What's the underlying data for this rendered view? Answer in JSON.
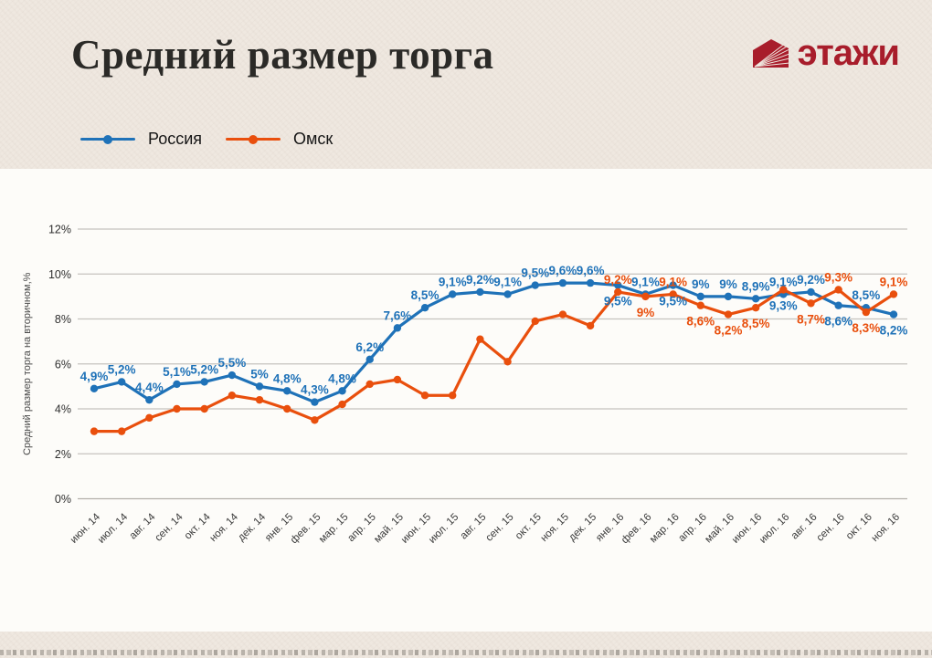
{
  "header": {
    "title": "Средний размер торга",
    "logo_text": "этажи",
    "logo_color": "#a81d2b"
  },
  "legend": [
    {
      "label": "Россия",
      "color": "#1f72b8"
    },
    {
      "label": "Омск",
      "color": "#e94f0d"
    }
  ],
  "chart_data": {
    "type": "line",
    "title": "Средний размер торга",
    "xlabel": "",
    "ylabel": "Средний размер торга на вторичном,%",
    "ylim": [
      0,
      12
    ],
    "yticks": [
      0,
      2,
      4,
      6,
      8,
      10,
      12
    ],
    "ytick_labels": [
      "0%",
      "2%",
      "4%",
      "6%",
      "8%",
      "10%",
      "12%"
    ],
    "grid": true,
    "legend_position": "top-left",
    "categories": [
      "июн. 14",
      "июл. 14",
      "авг. 14",
      "сен. 14",
      "окт. 14",
      "ноя. 14",
      "дек. 14",
      "янв. 15",
      "фев. 15",
      "мар. 15",
      "апр. 15",
      "май. 15",
      "июн. 15",
      "июл. 15",
      "авг. 15",
      "сен. 15",
      "окт. 15",
      "ноя. 15",
      "дек. 15",
      "янв. 16",
      "фев. 16",
      "мар. 16",
      "апр. 16",
      "май. 16",
      "июн. 16",
      "июл. 16",
      "авг. 16",
      "сен. 16",
      "окт. 16",
      "ноя. 16"
    ],
    "series": [
      {
        "name": "Россия",
        "color": "#1f72b8",
        "values": [
          4.9,
          5.2,
          4.4,
          5.1,
          5.2,
          5.5,
          5,
          4.8,
          4.3,
          4.8,
          6.2,
          7.6,
          8.5,
          9.1,
          9.2,
          9.1,
          9.5,
          9.6,
          9.6,
          9.5,
          9.1,
          9.5,
          9,
          9,
          8.9,
          9.1,
          9.2,
          8.6,
          8.5,
          8.2
        ],
        "labels": [
          "4,9%",
          "5,2%",
          "4,4%",
          "5,1%",
          "5,2%",
          "5,5%",
          "5%",
          "4,8%",
          "4,3%",
          "4,8%",
          "6,2%",
          "7,6%",
          "8,5%",
          "9,1%",
          "9,2%",
          "9,1%",
          "9,5%",
          "9,6%",
          "9,6%",
          "9,5%",
          "9,1%",
          "9,5%",
          "9%",
          "9%",
          "8,9%",
          "9,1%",
          "9,2%",
          "8,6%",
          "8,5%",
          "8,2%"
        ],
        "label_pos": [
          "a",
          "a",
          "a",
          "a",
          "a",
          "a",
          "a",
          "a",
          "a",
          "a",
          "a",
          "a",
          "a",
          "a",
          "a",
          "a",
          "a",
          "a",
          "a",
          "b",
          "a",
          "b",
          "a",
          "a",
          "a",
          "a",
          "a",
          "b",
          "a",
          "b"
        ],
        "label_color_overrides": {}
      },
      {
        "name": "Омск",
        "color": "#e94f0d",
        "values": [
          3,
          3,
          3.6,
          4,
          4,
          4.6,
          4.4,
          4,
          3.5,
          4.2,
          5.1,
          5.3,
          4.6,
          4.6,
          7.1,
          6.1,
          7.9,
          8.2,
          7.7,
          9.2,
          9,
          9.1,
          8.6,
          8.2,
          8.5,
          9.3,
          8.7,
          9.3,
          8.3,
          9.1
        ],
        "labels": [
          null,
          null,
          null,
          null,
          null,
          null,
          null,
          null,
          null,
          null,
          null,
          null,
          null,
          null,
          null,
          null,
          null,
          null,
          null,
          "9,2%",
          "9%",
          "9,1%",
          "8,6%",
          "8,2%",
          "8,5%",
          "9,3%",
          "8,7%",
          "9,3%",
          "8,3%",
          "9,1%"
        ],
        "label_pos": [
          null,
          null,
          null,
          null,
          null,
          null,
          null,
          null,
          null,
          null,
          null,
          null,
          null,
          null,
          null,
          null,
          null,
          null,
          null,
          "a",
          "b",
          "a",
          "b",
          "b",
          "b",
          "b",
          "b",
          "a",
          "b",
          "a"
        ],
        "label_color_overrides": {
          "25": "#1f72b8"
        }
      }
    ]
  }
}
